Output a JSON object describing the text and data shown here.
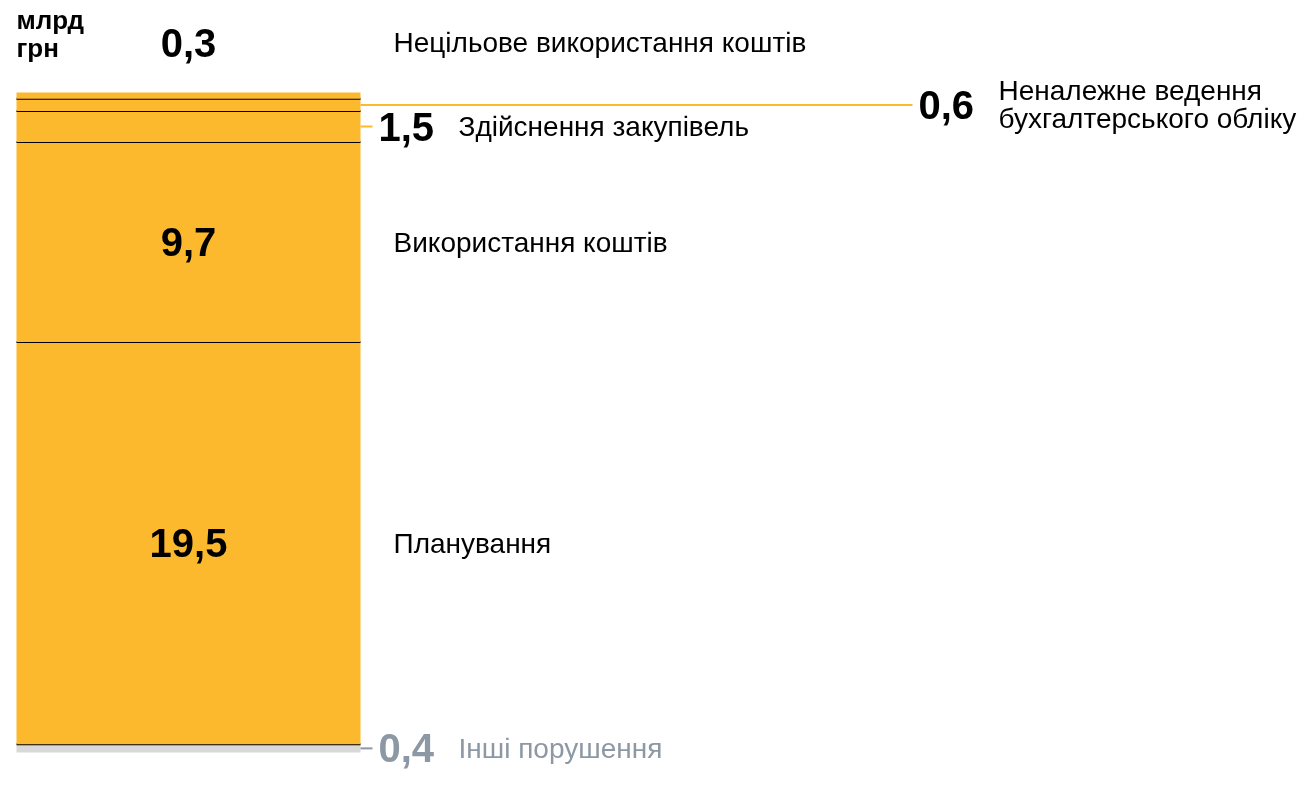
{
  "chart_data": {
    "type": "bar",
    "stacked": true,
    "ylabel": "млрд грн",
    "categories": [
      null
    ],
    "series": [
      {
        "name": "Інші порушення",
        "color": "#d9d9d9",
        "values": [
          0.4
        ],
        "value_labels": [
          "0,4"
        ]
      },
      {
        "name": "Планування",
        "color": "#fdb92e",
        "values": [
          19.5
        ],
        "value_labels": [
          "19,5"
        ]
      },
      {
        "name": "Використання коштів",
        "color": "#fdb92e",
        "values": [
          9.7
        ],
        "value_labels": [
          "9,7"
        ]
      },
      {
        "name": "Здійснення закупівель",
        "color": "#fdb92e",
        "values": [
          1.5
        ],
        "value_labels": [
          "1,5"
        ]
      },
      {
        "name": "Неналежне ведення бухгалтерського обліку",
        "color": "#fdb92e",
        "values": [
          0.6
        ],
        "value_labels": [
          "0,6"
        ]
      },
      {
        "name": "Нецільове використання коштів",
        "color": "#fdb92e",
        "values": [
          0.3
        ],
        "value_labels": [
          "0,3"
        ]
      }
    ]
  }
}
